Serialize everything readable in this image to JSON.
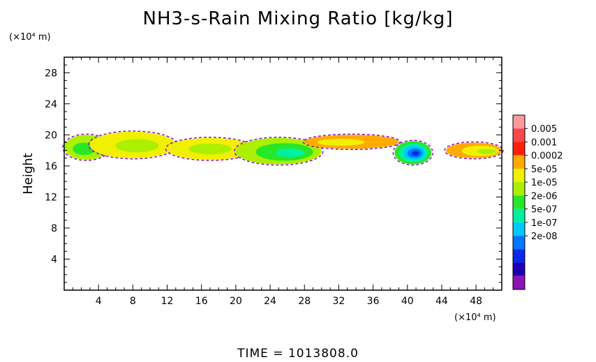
{
  "title": "NH3-s-Rain Mixing Ratio [kg/kg]",
  "ylabel": "Height",
  "y_unit": "(×10⁴ m)",
  "x_unit": "(×10⁴ m)",
  "footer": "TIME = 1013808.0",
  "chart_data": {
    "type": "heatmap",
    "title": "NH3-s-Rain Mixing Ratio [kg/kg]",
    "ylabel": "Height",
    "xlim": [
      0,
      51
    ],
    "ylim": [
      0,
      30
    ],
    "x_ticks": [
      4,
      8,
      12,
      16,
      20,
      24,
      28,
      32,
      36,
      40,
      44,
      48
    ],
    "y_ticks": [
      4,
      8,
      12,
      16,
      20,
      24,
      28
    ],
    "colorbar": {
      "levels": [
        "0.005",
        "0.001",
        "0.0002",
        "5e-05",
        "1e-05",
        "2e-06",
        "5e-07",
        "1e-07",
        "2e-08"
      ],
      "colors": [
        "#fa9a9a",
        "#f8464b",
        "#ff1e0a",
        "#ffaa00",
        "#f0f000",
        "#aaf000",
        "#28e628",
        "#00f0a0",
        "#00c8ff",
        "#0078ff",
        "#0a28e6",
        "#1e00b4",
        "#8c14b4"
      ]
    },
    "regions": [
      {
        "x0": 0.0,
        "x1": 5.2,
        "y0": 16.8,
        "y1": 20.0,
        "level": 7,
        "core": {
          "x": 2.0,
          "y": 18.0,
          "level": 6
        }
      },
      {
        "x0": 3.0,
        "x1": 13.0,
        "y0": 17.0,
        "y1": 20.4,
        "level": 8,
        "core": {
          "x": 9.0,
          "y": 18.5,
          "level": 7
        }
      },
      {
        "x0": 12.0,
        "x1": 22.0,
        "y0": 16.8,
        "y1": 19.6,
        "level": 8,
        "core": {
          "x": 17.0,
          "y": 18.2,
          "level": 7
        }
      },
      {
        "x0": 20.0,
        "x1": 30.0,
        "y0": 16.2,
        "y1": 19.6,
        "level": 7,
        "core": {
          "x": 27.0,
          "y": 17.6,
          "level": 5
        }
      },
      {
        "x0": 28.0,
        "x1": 39.0,
        "y0": 18.2,
        "y1": 20.0,
        "level": 9,
        "core": {
          "x": 31.0,
          "y": 19.0,
          "level": 8
        }
      },
      {
        "x0": 38.5,
        "x1": 42.8,
        "y0": 16.2,
        "y1": 19.2,
        "level": 6,
        "core": {
          "x": 41.0,
          "y": 17.6,
          "level": 2
        }
      },
      {
        "x0": 44.5,
        "x1": 51.0,
        "y0": 17.0,
        "y1": 19.0,
        "level": 9,
        "core": {
          "x": 50.0,
          "y": 17.8,
          "level": 7
        }
      }
    ]
  }
}
